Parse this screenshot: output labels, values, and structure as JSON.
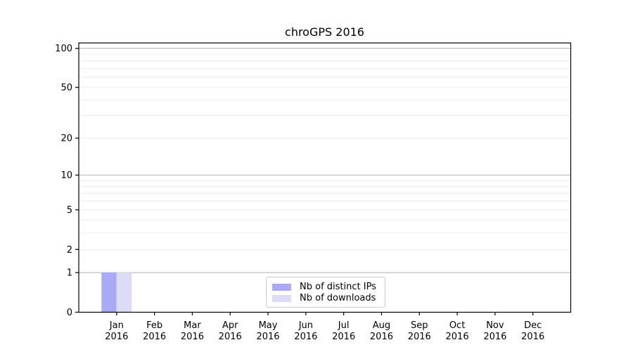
{
  "figure": {
    "background": "#ffffff"
  },
  "chart_data": {
    "type": "bar",
    "title": "chroGPS 2016",
    "xlabel": "",
    "ylabel": "",
    "x_months": [
      "Jan",
      "Feb",
      "Mar",
      "Apr",
      "May",
      "Jun",
      "Jul",
      "Aug",
      "Sep",
      "Oct",
      "Nov",
      "Dec"
    ],
    "x_year": "2016",
    "series": [
      {
        "name": "Nb of distinct IPs",
        "color": "#a9a9f6",
        "values": [
          1,
          0,
          0,
          0,
          0,
          0,
          0,
          0,
          0,
          0,
          0,
          0
        ]
      },
      {
        "name": "Nb of downloads",
        "color": "#dcdcf8",
        "values": [
          1,
          0,
          0,
          0,
          0,
          0,
          0,
          0,
          0,
          0,
          0,
          0
        ]
      }
    ],
    "yscale": "log1p",
    "ylim": [
      0,
      110
    ],
    "yticks": [
      "0",
      "1",
      "2",
      "5",
      "10",
      "20",
      "50",
      "100"
    ],
    "grid_major": [
      1,
      10,
      100
    ],
    "grid_minor": [
      2,
      3,
      4,
      5,
      6,
      7,
      8,
      9,
      20,
      30,
      40,
      50,
      60,
      70,
      80,
      90
    ],
    "grid_on": true,
    "legend": {
      "location": "lower center",
      "entries": [
        {
          "label": "Nb of distinct IPs",
          "color": "#a9a9f6"
        },
        {
          "label": "Nb of downloads",
          "color": "#dcdcf8"
        }
      ]
    },
    "colors": {
      "grid_major": "#b2b2b2",
      "grid_minor": "#eaeaea",
      "spine": "#000000",
      "text": "#000000",
      "plot_background": "#ffffff"
    }
  }
}
